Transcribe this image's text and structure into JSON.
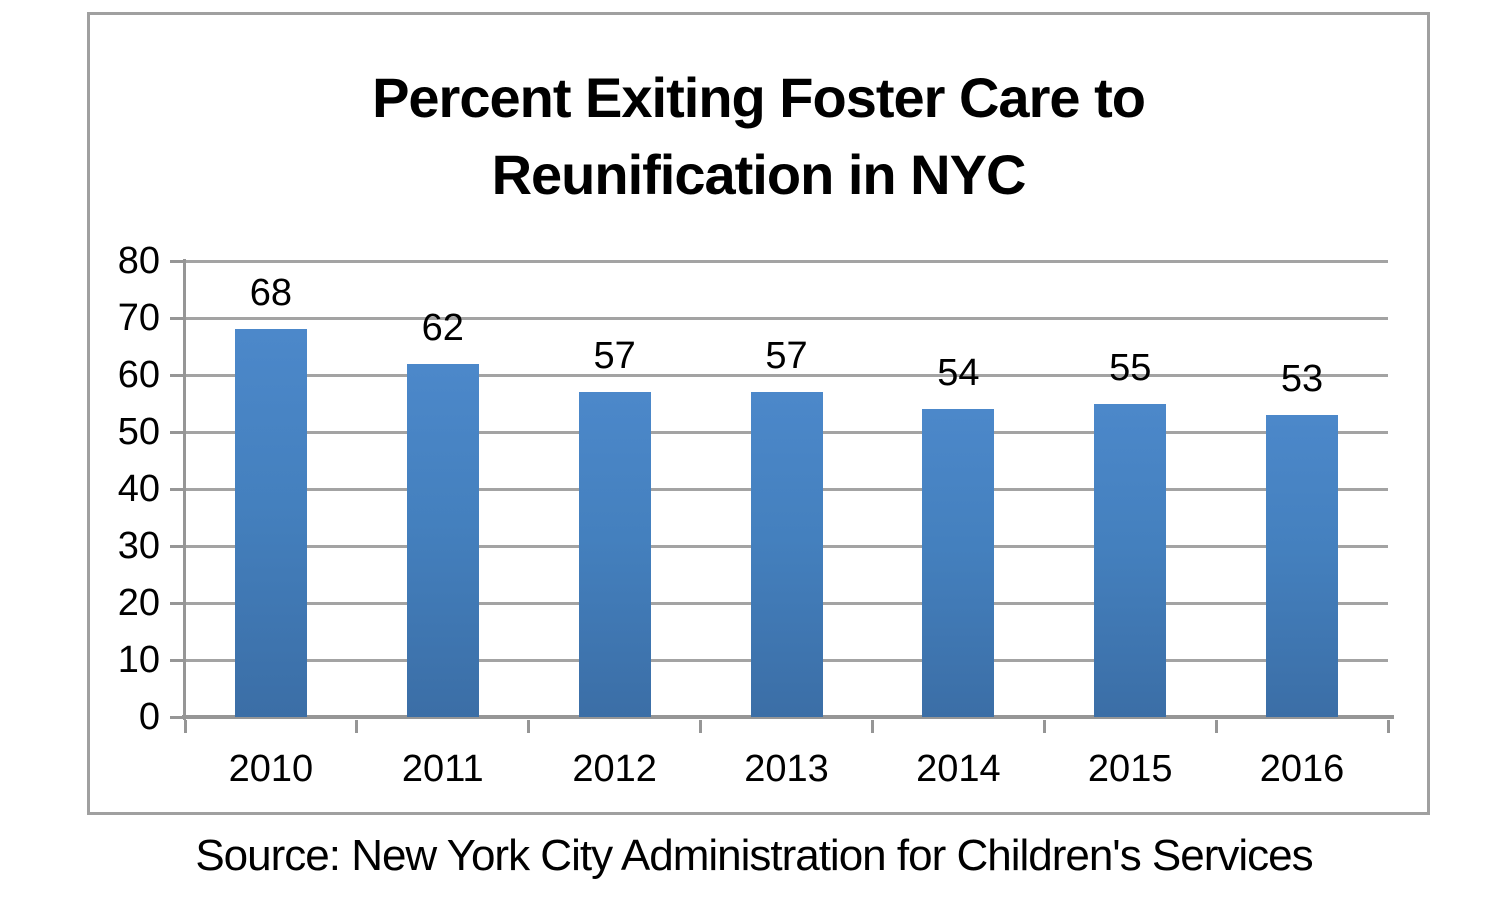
{
  "title": {
    "line1": "Percent Exiting Foster Care to",
    "line2": "Reunification in NYC"
  },
  "source": "Source: New York City Administration for Children's Services",
  "chart_data": {
    "type": "bar",
    "title": "Percent Exiting Foster Care to Reunification in NYC",
    "categories": [
      "2010",
      "2011",
      "2012",
      "2013",
      "2014",
      "2015",
      "2016"
    ],
    "values": [
      68,
      62,
      57,
      57,
      54,
      55,
      53
    ],
    "data_labels": [
      "68",
      "62",
      "57",
      "57",
      "54",
      "55",
      "53"
    ],
    "xlabel": "",
    "ylabel": "",
    "ylim": [
      0,
      80
    ],
    "yticks": [
      0,
      10,
      20,
      30,
      40,
      50,
      60,
      70,
      80
    ],
    "grid": true,
    "legend": false,
    "source_note": "Source: New York City Administration for Children's Services",
    "colors": {
      "bar_gradient_top": "#4c88ca",
      "bar_gradient_mid": "#4480be",
      "bar_gradient_bottom": "#3b6ea6",
      "gridline": "#a3a3a3",
      "axis": "#969696",
      "frame_border": "#a0a0a0",
      "text": "#000000",
      "background": "#ffffff"
    }
  }
}
